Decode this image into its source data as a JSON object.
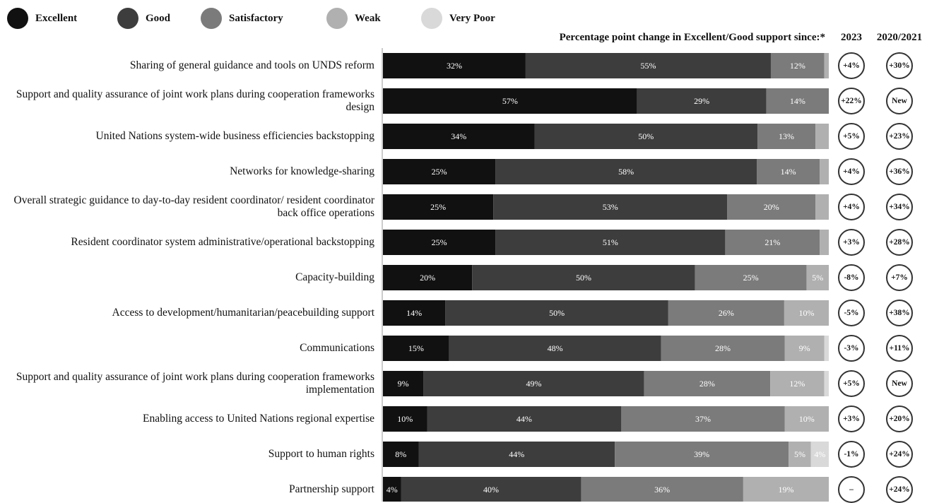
{
  "legend": [
    {
      "label": "Excellent",
      "color": "#111111"
    },
    {
      "label": "Good",
      "color": "#3d3d3d"
    },
    {
      "label": "Satisfactory",
      "color": "#7b7b7b"
    },
    {
      "label": "Weak",
      "color": "#b0b0b0"
    },
    {
      "label": "Very Poor",
      "color": "#d9d9d9"
    }
  ],
  "header": {
    "change_title": "Percentage point change in Excellent/Good support since:*",
    "col_2023": "2023",
    "col_2020": "2020/2021"
  },
  "chart_data": {
    "type": "bar",
    "orientation": "horizontal",
    "stacked": true,
    "series_names": [
      "Excellent",
      "Good",
      "Satisfactory",
      "Weak",
      "Very Poor"
    ],
    "colors": [
      "#111111",
      "#3d3d3d",
      "#7b7b7b",
      "#b0b0b0",
      "#d9d9d9"
    ],
    "text_colors": [
      "#ffffff",
      "#ffffff",
      "#ffffff",
      "#ffffff",
      "#ffffff"
    ],
    "rows": [
      {
        "label": "Sharing of general guidance and tools on UNDS reform",
        "values": [
          32,
          55,
          12,
          1,
          0
        ],
        "labels": [
          "32%",
          "55%",
          "12%",
          "",
          ""
        ],
        "change_2023": "+4%",
        "change_2020": "+30%"
      },
      {
        "label": "Support and quality assurance of joint work plans during cooperation frameworks design",
        "values": [
          57,
          29,
          14,
          0,
          0
        ],
        "labels": [
          "57%",
          "29%",
          "14%",
          "",
          ""
        ],
        "change_2023": "+22%",
        "change_2020": "New"
      },
      {
        "label": "United Nations system-wide business efficiencies backstopping",
        "values": [
          34,
          50,
          13,
          3,
          0
        ],
        "labels": [
          "34%",
          "50%",
          "13%",
          "",
          ""
        ],
        "change_2023": "+5%",
        "change_2020": "+23%"
      },
      {
        "label": "Networks for knowledge-sharing",
        "values": [
          25,
          58,
          14,
          2,
          0
        ],
        "labels": [
          "25%",
          "58%",
          "14%",
          "",
          ""
        ],
        "change_2023": "+4%",
        "change_2020": "+36%"
      },
      {
        "label": "Overall strategic guidance to day-to-day resident coordinator/ resident coordinator back office operations",
        "values": [
          25,
          53,
          20,
          3,
          0
        ],
        "labels": [
          "25%",
          "53%",
          "20%",
          "",
          ""
        ],
        "change_2023": "+4%",
        "change_2020": "+34%"
      },
      {
        "label": "Resident coordinator system administrative/operational backstopping",
        "values": [
          25,
          51,
          21,
          2,
          0
        ],
        "labels": [
          "25%",
          "51%",
          "21%",
          "",
          ""
        ],
        "change_2023": "+3%",
        "change_2020": "+28%"
      },
      {
        "label": "Capacity-building",
        "values": [
          20,
          50,
          25,
          5,
          0
        ],
        "labels": [
          "20%",
          "50%",
          "25%",
          "5%",
          ""
        ],
        "change_2023": "-8%",
        "change_2020": "+7%"
      },
      {
        "label": "Access to development/humanitarian/peacebuilding support",
        "values": [
          14,
          50,
          26,
          10,
          0
        ],
        "labels": [
          "14%",
          "50%",
          "26%",
          "10%",
          ""
        ],
        "change_2023": "-5%",
        "change_2020": "+38%"
      },
      {
        "label": "Communications",
        "values": [
          15,
          48,
          28,
          9,
          1
        ],
        "labels": [
          "15%",
          "48%",
          "28%",
          "9%",
          ""
        ],
        "change_2023": "-3%",
        "change_2020": "+11%"
      },
      {
        "label": "Support and quality assurance of joint work plans during cooperation frameworks implementation",
        "values": [
          9,
          49,
          28,
          12,
          1
        ],
        "labels": [
          "9%",
          "49%",
          "28%",
          "12%",
          ""
        ],
        "change_2023": "+5%",
        "change_2020": "New"
      },
      {
        "label": "Enabling access to United Nations regional expertise",
        "values": [
          10,
          44,
          37,
          10,
          0
        ],
        "labels": [
          "10%",
          "44%",
          "37%",
          "10%",
          ""
        ],
        "change_2023": "+3%",
        "change_2020": "+20%"
      },
      {
        "label": "Support to human rights",
        "values": [
          8,
          44,
          39,
          5,
          4
        ],
        "labels": [
          "8%",
          "44%",
          "39%",
          "5%",
          "4%"
        ],
        "change_2023": "-1%",
        "change_2020": "+24%"
      },
      {
        "label": "Partnership support",
        "values": [
          4,
          40,
          36,
          19,
          0
        ],
        "labels": [
          "4%",
          "40%",
          "36%",
          "19%",
          ""
        ],
        "change_2023": "–",
        "change_2020": "+24%"
      }
    ]
  }
}
